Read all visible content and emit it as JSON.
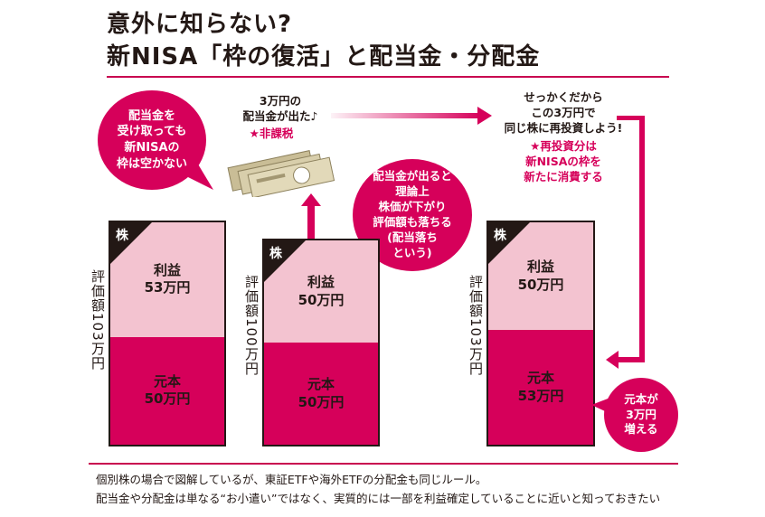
{
  "title": {
    "line1": "意外に知らない?",
    "line2": "新NISA「枠の復活」と配当金・分配金"
  },
  "bubbles": {
    "left": "配当金を\n受け取っても\n新NISAの\n枠は空かない",
    "middle": "配当金が出ると\n理論上\n株価が下がり\n評価額も落ちる\n(配当落ち\nという)",
    "right": "元本が\n3万円\n増える"
  },
  "captions": {
    "dividend_line1": "3万円の\n配当金が出た♪",
    "dividend_tax": "★非課税",
    "reinvest_line1": "せっかくだから\nこの3万円で\n同じ株に再投資しよう!",
    "reinvest_note": "★再投資分は\n新NISAの枠を\n新たに消費する"
  },
  "stocks": [
    {
      "tag": "株",
      "valuation_label": "評価額103万円",
      "profit_label": "利益",
      "profit_value": "53万円",
      "principal_label": "元本",
      "principal_value": "50万円",
      "profit_man_yen": 53,
      "principal_man_yen": 50
    },
    {
      "tag": "株",
      "valuation_label": "評価額100万円",
      "profit_label": "利益",
      "profit_value": "50万円",
      "principal_label": "元本",
      "principal_value": "50万円",
      "profit_man_yen": 50,
      "principal_man_yen": 50
    },
    {
      "tag": "株",
      "valuation_label": "評価額103万円",
      "profit_label": "利益",
      "profit_value": "50万円",
      "principal_label": "元本",
      "principal_value": "53万円",
      "profit_man_yen": 50,
      "principal_man_yen": 53
    }
  ],
  "footer": {
    "line1": "個別株の場合で図解しているが、東証ETFや海外ETFの分配金も同じルール。",
    "line2": "配当金や分配金は単なる“お小遣い”ではなく、実質的には一部を利益確定していることに近いと知っておきたい"
  },
  "colors": {
    "accent": "#d6005a",
    "profit_fill": "#f3c3d0",
    "ink": "#231815"
  },
  "icons": {
    "banknotes": "yen-banknotes-icon"
  }
}
